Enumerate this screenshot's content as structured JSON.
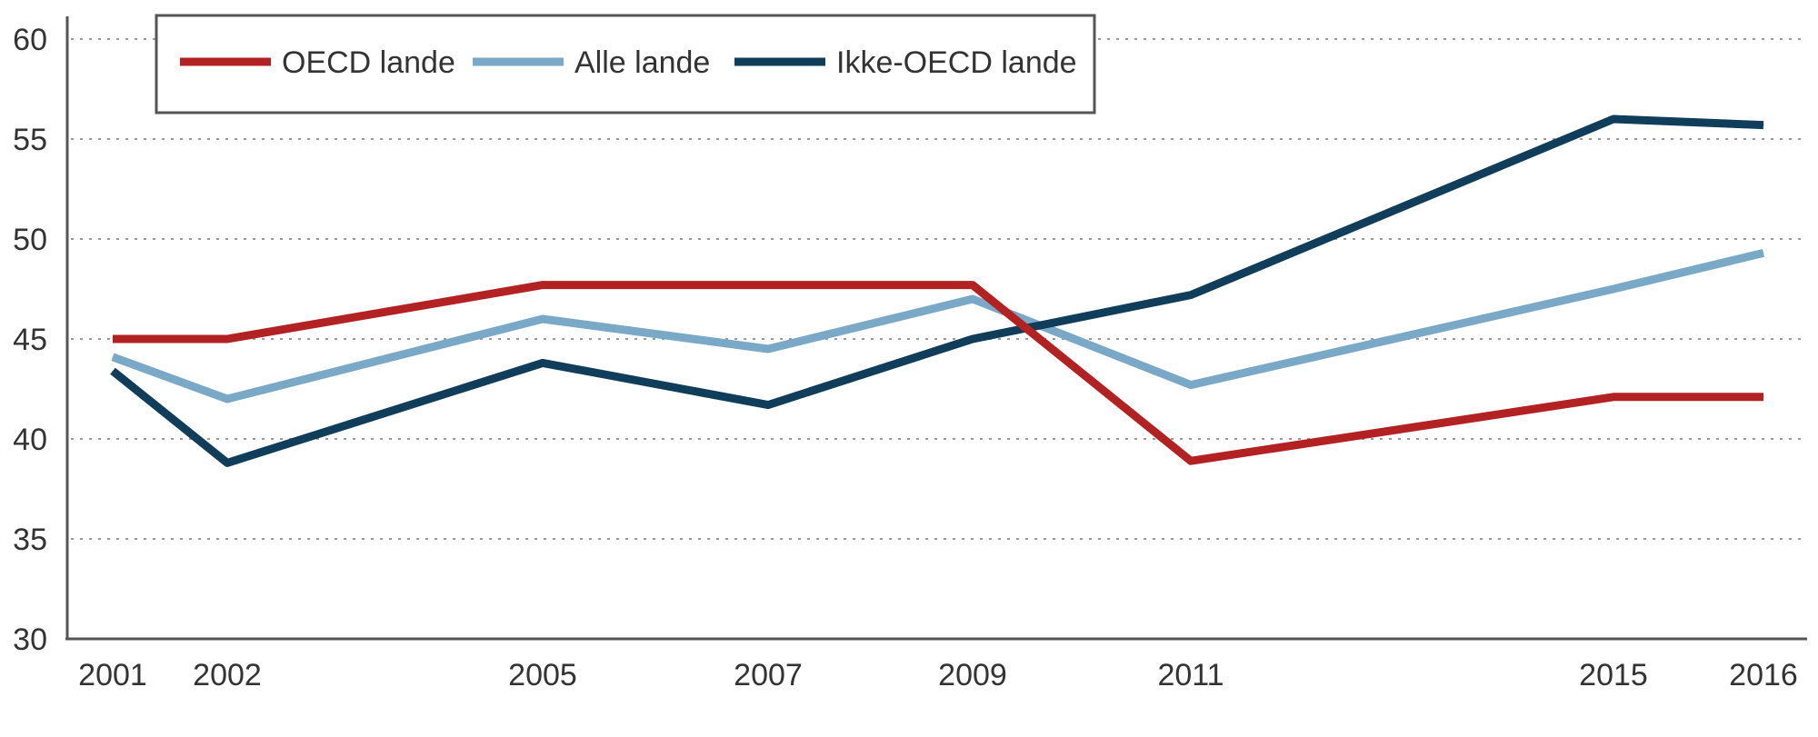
{
  "chart_data": {
    "type": "line",
    "title": "",
    "xlabel": "",
    "ylabel": "",
    "x": [
      "2001",
      "2002",
      "2005",
      "2007",
      "2009",
      "2011",
      "2015",
      "2016"
    ],
    "ylim": [
      30,
      60
    ],
    "yticks": [
      "30",
      "35",
      "40",
      "45",
      "50",
      "55",
      "60"
    ],
    "grid": true,
    "legend_position": "top-left",
    "series": [
      {
        "name": "OECD lande",
        "color": "#b22222",
        "values": [
          45.0,
          45.0,
          47.7,
          47.7,
          47.7,
          38.9,
          42.1,
          42.1
        ]
      },
      {
        "name": "Alle lande",
        "color": "#7aa8c7",
        "values": [
          44.1,
          42.0,
          46.0,
          44.5,
          47.0,
          42.7,
          47.5,
          49.3
        ]
      },
      {
        "name": "Ikke-OECD lande",
        "color": "#0f3d5a",
        "values": [
          43.4,
          38.8,
          43.8,
          41.7,
          45.0,
          47.2,
          56.0,
          55.7
        ]
      }
    ]
  }
}
